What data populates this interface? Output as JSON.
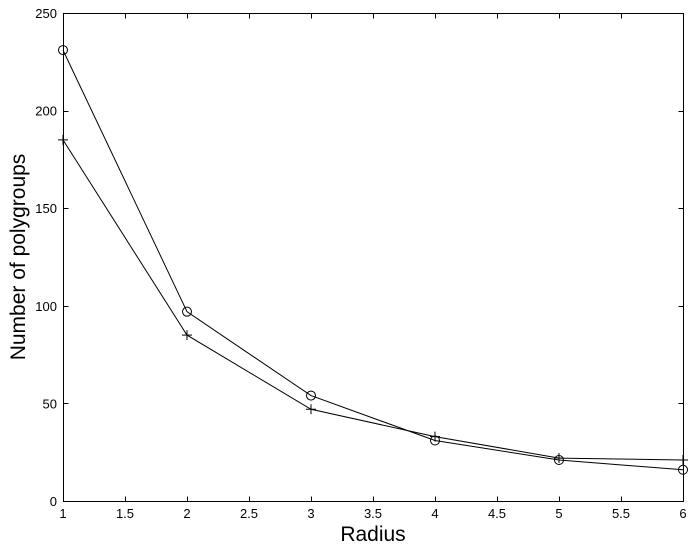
{
  "chart_data": {
    "type": "line",
    "title": "",
    "xlabel": "Radius",
    "ylabel": "Number of polygroups",
    "xlim": [
      1,
      6
    ],
    "ylim": [
      0,
      250
    ],
    "xticks": [
      1,
      1.5,
      2,
      2.5,
      3,
      3.5,
      4,
      4.5,
      5,
      5.5,
      6
    ],
    "yticks": [
      0,
      50,
      100,
      150,
      200,
      250
    ],
    "xtick_labels": [
      "1",
      "1.5",
      "2",
      "2.5",
      "3",
      "3.5",
      "4",
      "4.5",
      "5",
      "5.5",
      "6"
    ],
    "ytick_labels": [
      "0",
      "50",
      "100",
      "150",
      "200",
      "250"
    ],
    "grid": false,
    "legend": "none",
    "x": [
      1,
      2,
      3,
      4,
      5,
      6
    ],
    "series": [
      {
        "marker": "circle",
        "values": [
          231,
          97,
          54,
          31,
          21,
          16
        ]
      },
      {
        "marker": "plus",
        "values": [
          185,
          85,
          47,
          33,
          22,
          21
        ]
      }
    ]
  }
}
